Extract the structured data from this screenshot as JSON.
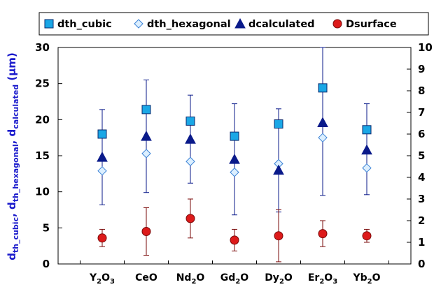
{
  "chart_data": {
    "type": "scatter",
    "categories": [
      {
        "base": "Y",
        "sub1": "2",
        "mid": "O",
        "sub2": "3"
      },
      {
        "base": "CeO",
        "sub1": "",
        "mid": "",
        "sub2": ""
      },
      {
        "base": "Nd",
        "sub1": "2",
        "mid": "O",
        "sub2": ""
      },
      {
        "base": "Gd",
        "sub1": "2",
        "mid": "O",
        "sub2": ""
      },
      {
        "base": "Dy",
        "sub1": "2",
        "mid": "O",
        "sub2": ""
      },
      {
        "base": "Er",
        "sub1": "2",
        "mid": "O",
        "sub2": "3"
      },
      {
        "base": "Yb",
        "sub1": "2",
        "mid": "O",
        "sub2": ""
      }
    ],
    "ylabel": {
      "d1": "d",
      "s1": "th_cubic",
      "c1": ", ",
      "d2": "d",
      "s2": "th_hexagonal",
      "c2": ", ",
      "d3": "d",
      "s3": "calculated",
      "unit": " (µm)"
    },
    "ylim_left": [
      0,
      30
    ],
    "ylim_right": [
      0,
      10
    ],
    "yticks_left": [
      0,
      5,
      10,
      15,
      20,
      25,
      30
    ],
    "yticks_right": [
      0,
      1,
      2,
      3,
      4,
      5,
      6,
      7,
      8,
      9,
      10
    ],
    "grid": false,
    "legend_position": "top",
    "series": [
      {
        "name": "dth_cubic",
        "axis": "left",
        "marker": "square",
        "color": "#1aa7e6",
        "stroke": "#0a2a6e",
        "values": [
          18.0,
          21.4,
          19.8,
          17.7,
          19.4,
          24.4,
          18.6
        ]
      },
      {
        "name": "dth_hexagonal",
        "axis": "left",
        "marker": "diamond",
        "color": "#dcefff",
        "stroke": "#3b82d6",
        "values": [
          12.9,
          15.3,
          14.2,
          12.7,
          13.9,
          17.5,
          13.3
        ]
      },
      {
        "name": "dcalculated",
        "axis": "left",
        "marker": "triangle",
        "color": "#0a1a8a",
        "stroke": "#0a1a8a",
        "values": [
          14.8,
          17.7,
          17.3,
          14.5,
          13.0,
          19.6,
          15.8
        ],
        "error_low": [
          8.2,
          9.9,
          11.2,
          6.8,
          7.2,
          9.5,
          9.6
        ],
        "error_high": [
          21.4,
          25.5,
          23.4,
          22.2,
          21.5,
          30.0,
          22.2
        ]
      },
      {
        "name": "Dsurface",
        "axis": "right",
        "marker": "circle",
        "color": "#dd1a1a",
        "stroke": "#7a0a0a",
        "values": [
          1.2,
          1.5,
          2.1,
          1.1,
          1.3,
          1.4,
          1.3
        ],
        "error_low": [
          0.8,
          0.4,
          1.2,
          0.6,
          0.1,
          0.8,
          1.0
        ],
        "error_high": [
          1.6,
          2.6,
          3.0,
          1.6,
          2.5,
          2.0,
          1.6
        ]
      }
    ]
  },
  "colors": {
    "axis_label": "#1a1acc",
    "error_bar_triangle": "#0a1a8a",
    "error_bar_circle": "#7a0a0a"
  }
}
